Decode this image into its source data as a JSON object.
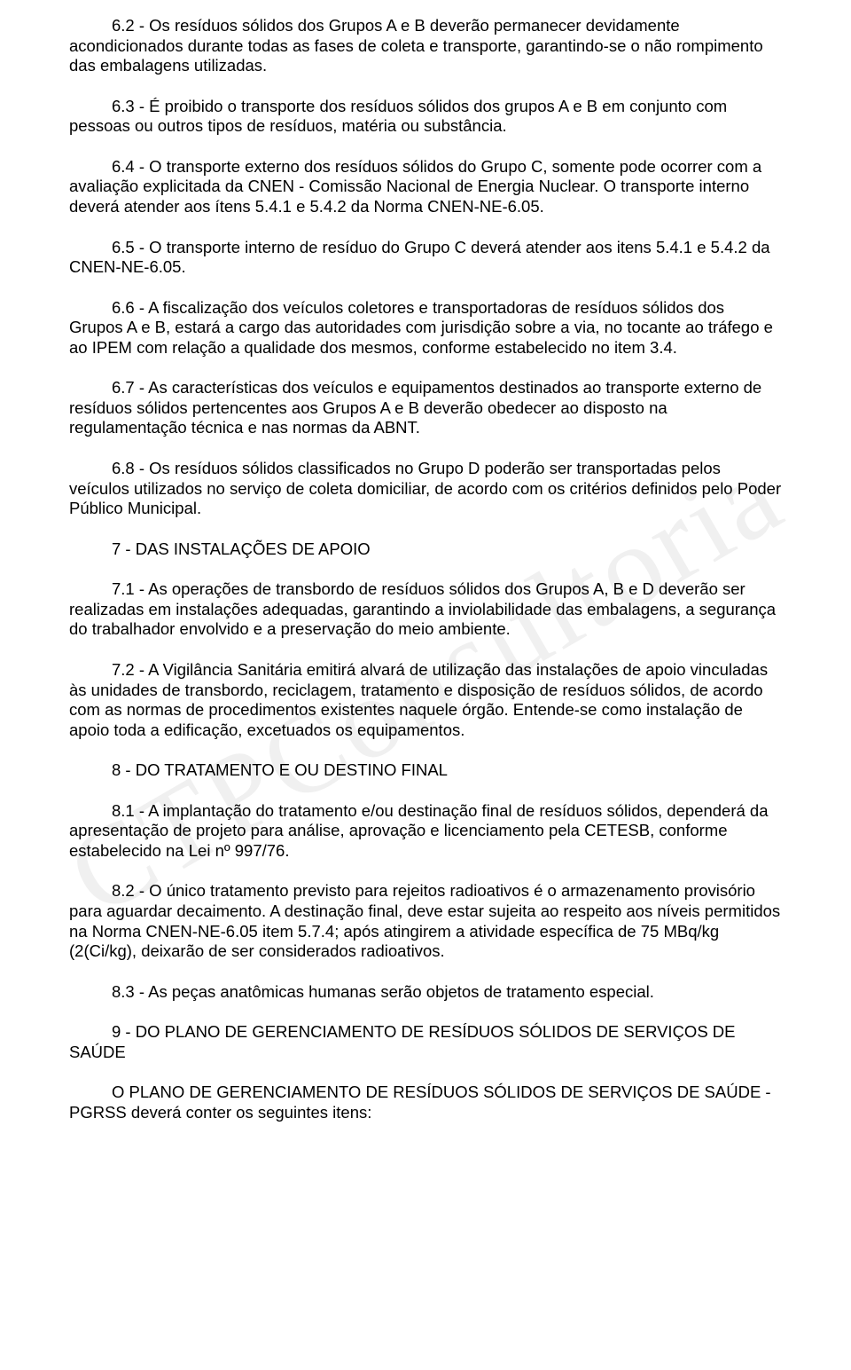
{
  "watermark": "CTPConsultoria",
  "paragraphs": [
    {
      "text": "6.2 - Os resíduos sólidos dos Grupos A e B deverão permanecer devidamente acondicionados durante todas as fases de coleta e transporte, garantindo-se o não rompimento das embalagens utilizadas.",
      "indent": true
    },
    {
      "text": "6.3 - É proibido o transporte dos resíduos sólidos dos grupos A e B em conjunto com pessoas ou outros tipos de resíduos, matéria ou substância.",
      "indent": true
    },
    {
      "text": "6.4 - O transporte externo dos resíduos sólidos do Grupo C, somente pode ocorrer com a avaliação explicitada da CNEN - Comissão Nacional de Energia Nuclear. O transporte interno deverá atender aos ítens 5.4.1 e 5.4.2 da Norma CNEN-NE-6.05.",
      "indent": true
    },
    {
      "text": "6.5 - O transporte interno de resíduo do Grupo C deverá atender aos itens 5.4.1 e 5.4.2 da CNEN-NE-6.05.",
      "indent": true
    },
    {
      "text": "6.6 - A fiscalização dos veículos coletores e transportadoras de resíduos sólidos dos Grupos A e B, estará a cargo das autoridades com jurisdição sobre a via, no tocante ao tráfego e ao IPEM com relação a qualidade dos mesmos, conforme estabelecido no item 3.4.",
      "indent": true
    },
    {
      "text": "6.7 - As características dos veículos e equipamentos destinados ao transporte externo de resíduos sólidos pertencentes aos Grupos A e B deverão obedecer ao disposto na regulamentação técnica e nas normas da ABNT.",
      "indent": true
    },
    {
      "text": "6.8 - Os resíduos sólidos classificados no Grupo D poderão ser transportadas pelos veículos utilizados no serviço de coleta domiciliar, de acordo com os critérios definidos pelo Poder Público Municipal.",
      "indent": true
    },
    {
      "text": "7 - DAS INSTALAÇÕES DE APOIO",
      "indent": true
    },
    {
      "text": "7.1 - As operações de transbordo de resíduos sólidos dos Grupos A, B e D deverão ser realizadas em instalações adequadas, garantindo a inviolabilidade das embalagens, a segurança do trabalhador envolvido e a preservação do meio ambiente.",
      "indent": true
    },
    {
      "text": "7.2 - A Vigilância Sanitária emitirá alvará de utilização das instalações de apoio vinculadas às unidades de transbordo, reciclagem, tratamento e disposição de resíduos sólidos, de acordo com as normas de procedimentos existentes naquele órgão. Entende-se como instalação de apoio toda a edificação, excetuados os equipamentos.",
      "indent": true
    },
    {
      "text": "8 - DO TRATAMENTO E OU DESTINO FINAL",
      "indent": true
    },
    {
      "text": "8.1 - A implantação do tratamento e/ou destinação final de resíduos sólidos, dependerá da apresentação de projeto para análise, aprovação e licenciamento pela CETESB, conforme estabelecido na Lei nº 997/76.",
      "indent": true
    },
    {
      "text": "8.2 - O único tratamento previsto para rejeitos radioativos é o armazenamento provisório para aguardar decaimento. A destinação final, deve estar sujeita ao respeito aos níveis permitidos na Norma CNEN-NE-6.05 item 5.7.4; após atingirem a atividade específica de 75 MBq/kg (2(Ci/kg), deixarão de ser considerados radioativos.",
      "indent": true
    },
    {
      "text": "8.3 - As peças anatômicas humanas serão objetos de tratamento especial.",
      "indent": true
    },
    {
      "text": "9 - DO PLANO DE GERENCIAMENTO DE RESÍDUOS SÓLIDOS DE SERVIÇOS DE SAÚDE",
      "indent": true
    },
    {
      "text": "O PLANO DE GERENCIAMENTO DE RESÍDUOS SÓLIDOS DE SERVIÇOS DE SAÚDE - PGRSS deverá conter os seguintes itens:",
      "indent": true
    }
  ]
}
